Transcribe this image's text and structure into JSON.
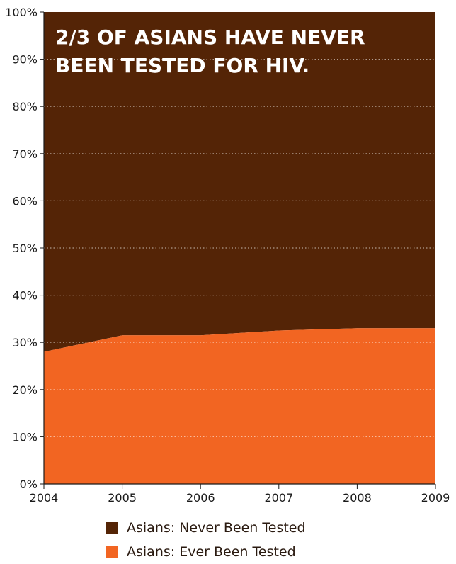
{
  "chart_data": {
    "type": "area",
    "stacked": true,
    "title_lines": [
      "2/3 OF ASIANS HAVE NEVER",
      "BEEN TESTED FOR HIV."
    ],
    "x": [
      "2004",
      "2005",
      "2006",
      "2007",
      "2008",
      "2009"
    ],
    "y_ticks": [
      "0%",
      "10%",
      "20%",
      "30%",
      "40%",
      "50%",
      "60%",
      "70%",
      "80%",
      "90%",
      "100%"
    ],
    "ylim": [
      0,
      100
    ],
    "grid": "horizontal dotted",
    "legend_position": "bottom",
    "series": [
      {
        "name": "Asians: Ever Been Tested",
        "color": "#f26522",
        "values": [
          28,
          31.5,
          31.5,
          32.5,
          33,
          33
        ]
      },
      {
        "name": "Asians: Never Been Tested",
        "color": "#542406",
        "values": [
          72,
          68.5,
          68.5,
          67.5,
          67,
          67
        ]
      }
    ]
  },
  "legend": {
    "items": [
      {
        "label": "Asians: Never Been Tested",
        "color": "#542406"
      },
      {
        "label": "Asians: Ever Been Tested",
        "color": "#f26522"
      }
    ]
  }
}
